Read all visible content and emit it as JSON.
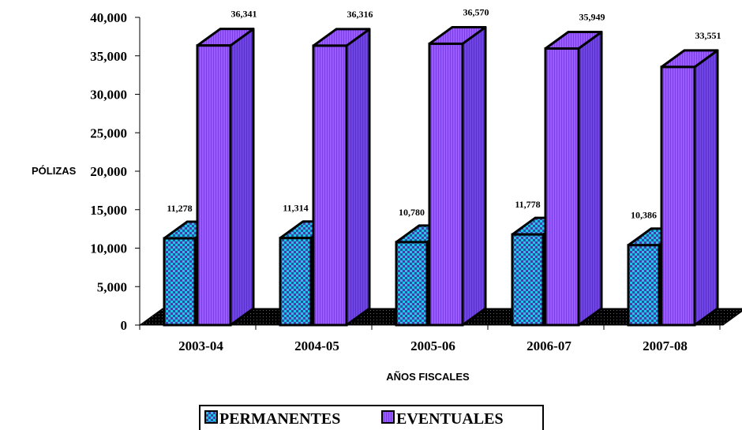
{
  "chart_data": {
    "type": "bar",
    "categories": [
      "2003-04",
      "2004-05",
      "2005-06",
      "2006-07",
      "2007-08"
    ],
    "series": [
      {
        "name": "PERMANENTES",
        "values": [
          11278,
          11314,
          10780,
          11778,
          10386
        ],
        "labels": [
          "11,278",
          "11,314",
          "10,780",
          "11,778",
          "10,386"
        ]
      },
      {
        "name": "EVENTUALES",
        "values": [
          36341,
          36316,
          36570,
          35949,
          33551
        ],
        "labels": [
          "36,341",
          "36,316",
          "36,570",
          "35,949",
          "33,551"
        ]
      }
    ],
    "ylabel": "PÓLIZAS",
    "xlabel": "AÑOS FISCALES",
    "ylim": [
      0,
      40000
    ],
    "ytick_labels": [
      "0",
      "5,000",
      "10,000",
      "15,000",
      "20,000",
      "25,000",
      "30,000",
      "35,000",
      "40,000"
    ],
    "grid": false,
    "legend_position": "bottom",
    "colors": {
      "permanentes_front": "#1fc6e8",
      "permanentes_check": "#3a44a8",
      "eventuales_front": "#9a5cff",
      "eventuales_side": "#6f3fe0",
      "floor": "#000000"
    }
  }
}
